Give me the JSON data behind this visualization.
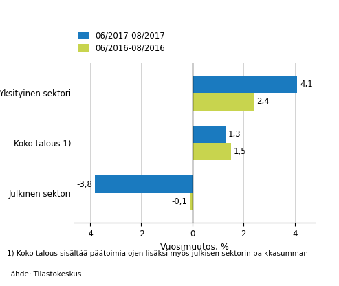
{
  "categories": [
    "Julkinen sektori",
    "Koko talous 1)",
    "Yksityinen sektori"
  ],
  "series_2017": [
    -3.8,
    1.3,
    4.1
  ],
  "series_2016": [
    -0.1,
    1.5,
    2.4
  ],
  "color_2017": "#1a7abf",
  "color_2016": "#c8d44e",
  "legend_2017": "06/2017-08/2017",
  "legend_2016": "06/2016-08/2016",
  "xlabel": "Vuosimuutos, %",
  "xlim": [
    -4.6,
    4.8
  ],
  "xticks": [
    -4,
    -2,
    0,
    2,
    4
  ],
  "footnote1": "1) Koko talous sisältää päätoimialojen lisäksi myös julkisen sektorin palkkasumman",
  "footnote2": "Lähde: Tilastokeskus",
  "bar_height": 0.35,
  "label_fontsize": 8.5,
  "tick_fontsize": 8.5,
  "legend_fontsize": 8.5,
  "xlabel_fontsize": 9,
  "footnote_fontsize": 7.5
}
